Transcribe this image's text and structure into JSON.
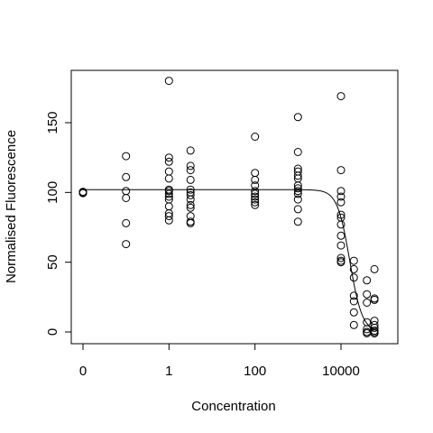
{
  "chart_data": {
    "type": "scatter",
    "title": "",
    "xlabel": "Concentration",
    "ylabel": "Normalised Fluorescence",
    "x_scale": "log10",
    "x_ticks": [
      {
        "value": 0.01,
        "label": "0"
      },
      {
        "value": 1,
        "label": "1"
      },
      {
        "value": 100,
        "label": "100"
      },
      {
        "value": 10000,
        "label": "10000"
      }
    ],
    "y_ticks": [
      0,
      50,
      100,
      150
    ],
    "xlim": [
      0.01,
      100000
    ],
    "ylim": [
      -7,
      190
    ],
    "grid": false,
    "legend": "none",
    "point_color": "#000000",
    "points": [
      {
        "x": 0.01,
        "y": [
          100,
          99.5,
          100.5,
          99.8,
          100.2,
          100
        ]
      },
      {
        "x": 0.1,
        "y": [
          126,
          111,
          101,
          96,
          78,
          63
        ]
      },
      {
        "x": 1,
        "y": [
          180,
          125,
          122,
          115,
          110,
          102,
          101,
          99,
          97,
          95,
          90,
          85,
          83,
          80
        ]
      },
      {
        "x": 3.16,
        "y": [
          130,
          119,
          116,
          109,
          102,
          100,
          98,
          95,
          91,
          89,
          83,
          79,
          78
        ]
      },
      {
        "x": 100,
        "y": [
          140,
          114,
          109,
          105,
          101,
          99,
          97,
          95,
          93,
          91
        ]
      },
      {
        "x": 1000,
        "y": [
          154,
          129,
          117,
          115,
          112,
          110,
          105,
          103,
          101,
          99,
          95,
          88,
          79
        ]
      },
      {
        "x": 10000,
        "y": [
          169,
          116,
          101,
          97,
          93,
          84,
          82,
          77,
          69,
          62,
          53,
          51,
          50
        ]
      },
      {
        "x": 20000,
        "y": [
          51,
          45,
          39,
          26,
          22,
          14,
          5
        ]
      },
      {
        "x": 40000,
        "y": [
          37,
          27,
          21,
          7,
          2,
          0,
          0,
          -1
        ]
      },
      {
        "x": 60000,
        "y": [
          45,
          24,
          23,
          8,
          5,
          3,
          1,
          0,
          -1,
          -1
        ]
      }
    ],
    "fit_curve": {
      "type": "log-logistic",
      "top": 102,
      "bottom": 0,
      "ec50": 16000,
      "hill": 3
    }
  }
}
